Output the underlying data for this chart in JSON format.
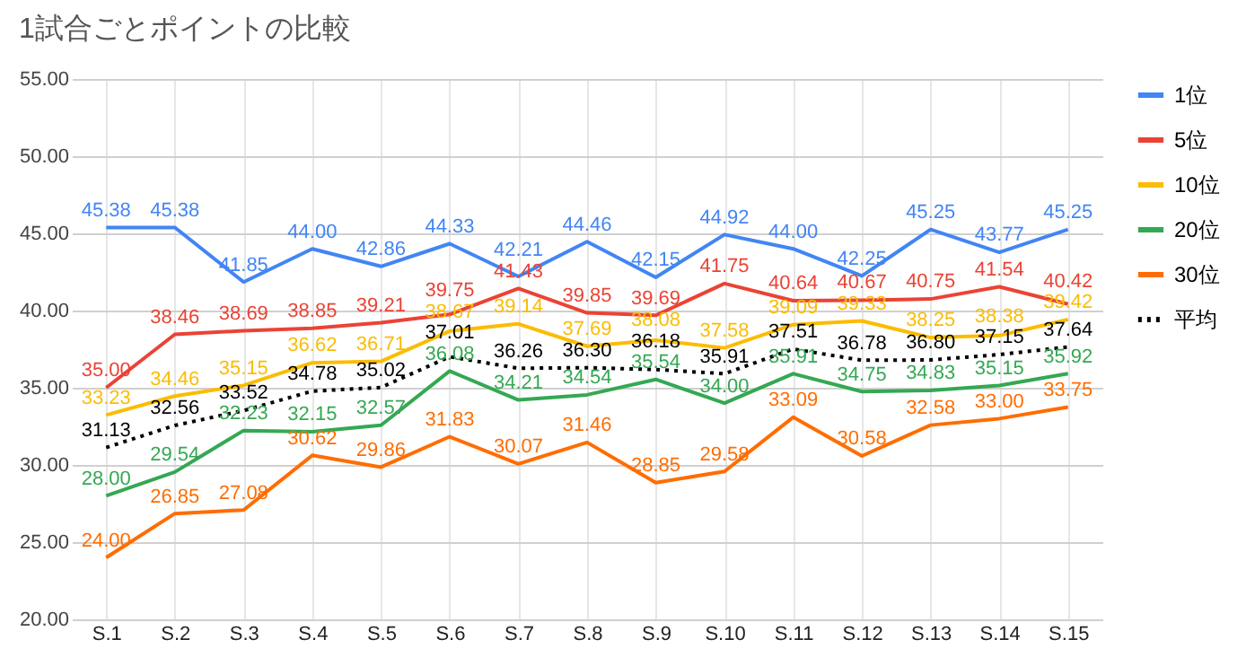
{
  "chart_data": {
    "type": "line",
    "title": "1試合ごとポイントの比較",
    "categories": [
      "S.1",
      "S.2",
      "S.3",
      "S.4",
      "S.5",
      "S.6",
      "S.7",
      "S.8",
      "S.9",
      "S.10",
      "S.11",
      "S.12",
      "S.13",
      "S.14",
      "S.15"
    ],
    "ylim": [
      20,
      55
    ],
    "yticks": [
      {
        "value": 20,
        "label": "20.00"
      },
      {
        "value": 25,
        "label": "25.00"
      },
      {
        "value": 30,
        "label": "30.00"
      },
      {
        "value": 35,
        "label": "35.00"
      },
      {
        "value": 40,
        "label": "40.00"
      },
      {
        "value": 45,
        "label": "45.00"
      },
      {
        "value": 50,
        "label": "50.00"
      },
      {
        "value": 55,
        "label": "55.00"
      }
    ],
    "grid": true,
    "legend": "right",
    "marker": "none",
    "series": [
      {
        "name": "1位",
        "color": "#4285f4",
        "line_style": "solid",
        "values": [
          45.38,
          45.38,
          41.85,
          44.0,
          42.86,
          44.33,
          42.21,
          44.46,
          42.15,
          44.92,
          44.0,
          42.25,
          45.25,
          43.77,
          45.25
        ],
        "value_labels": [
          "45.38",
          "45.38",
          "41.85",
          "44.00",
          "42.86",
          "44.33",
          "42.21",
          "44.46",
          "42.15",
          "44.92",
          "44.00",
          "42.25",
          "45.25",
          "43.77",
          "45.25"
        ]
      },
      {
        "name": "5位",
        "color": "#ea4335",
        "line_style": "solid",
        "values": [
          35.0,
          38.46,
          38.69,
          38.85,
          39.21,
          39.75,
          41.43,
          39.85,
          39.69,
          41.75,
          40.64,
          40.67,
          40.75,
          41.54,
          40.42
        ],
        "value_labels": [
          "35.00",
          "38.46",
          "38.69",
          "38.85",
          "39.21",
          "39.75",
          "41.43",
          "39.85",
          "39.69",
          "41.75",
          "40.64",
          "40.67",
          "40.75",
          "41.54",
          "40.42"
        ]
      },
      {
        "name": "10位",
        "color": "#fbbc04",
        "line_style": "solid",
        "values": [
          33.23,
          34.46,
          35.15,
          36.62,
          36.71,
          38.67,
          39.14,
          37.69,
          38.08,
          37.58,
          39.09,
          39.33,
          38.25,
          38.38,
          39.42
        ],
        "value_labels": [
          "33.23",
          "34.46",
          "35.15",
          "36.62",
          "36.71",
          "38.67",
          "39.14",
          "37.69",
          "38.08",
          "37.58",
          "39.09",
          "39.33",
          "38.25",
          "38.38",
          "39.42"
        ]
      },
      {
        "name": "20位",
        "color": "#34a853",
        "line_style": "solid",
        "values": [
          28.0,
          29.54,
          32.23,
          32.15,
          32.57,
          36.08,
          34.21,
          34.54,
          35.54,
          34.0,
          35.91,
          34.75,
          34.83,
          35.15,
          35.92
        ],
        "value_labels": [
          "28.00",
          "29.54",
          "32.23",
          "32.15",
          "32.57",
          "36.08",
          "34.21",
          "34.54",
          "35.54",
          "34.00",
          "35.91",
          "34.75",
          "34.83",
          "35.15",
          "35.92"
        ]
      },
      {
        "name": "30位",
        "color": "#ff6d01",
        "line_style": "solid",
        "values": [
          24.0,
          26.85,
          27.08,
          30.62,
          29.86,
          31.83,
          30.07,
          31.46,
          28.85,
          29.58,
          33.09,
          30.58,
          32.58,
          33.0,
          33.75
        ],
        "value_labels": [
          "24.00",
          "26.85",
          "27.08",
          "30.62",
          "29.86",
          "31.83",
          "30.07",
          "31.46",
          "28.85",
          "29.58",
          "33.09",
          "30.58",
          "32.58",
          "33.00",
          "33.75"
        ]
      },
      {
        "name": "平均",
        "color": "#000000",
        "line_style": "dotted",
        "values": [
          31.13,
          32.56,
          33.52,
          34.78,
          35.02,
          37.01,
          36.26,
          36.3,
          36.18,
          35.91,
          37.51,
          36.78,
          36.8,
          37.15,
          37.64
        ],
        "value_labels": [
          "31.13",
          "32.56",
          "33.52",
          "34.78",
          "35.02",
          "37.01",
          "36.26",
          "36.30",
          "36.18",
          "35.91",
          "37.51",
          "36.78",
          "36.80",
          "37.15",
          "37.64"
        ]
      }
    ]
  }
}
